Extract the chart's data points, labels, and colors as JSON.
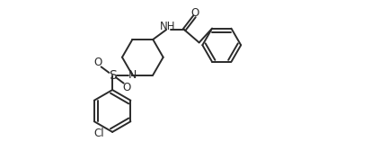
{
  "background": "#ffffff",
  "line_color": "#2a2a2a",
  "line_width": 1.4,
  "font_size": 8.5,
  "xlim": [
    0,
    10.5
  ],
  "ylim": [
    0,
    6.5
  ],
  "figsize": [
    4.33,
    1.87
  ],
  "dpi": 100
}
